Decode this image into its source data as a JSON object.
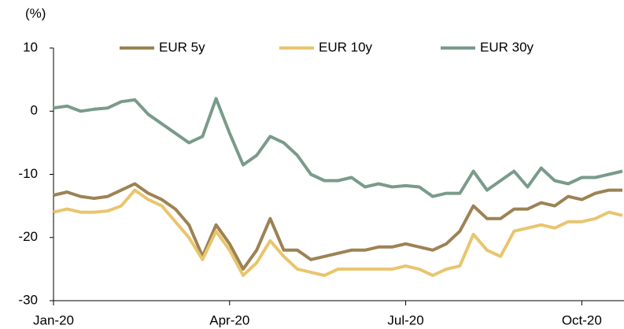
{
  "chart_data": {
    "type": "line",
    "y_label": "(%)",
    "categories": [
      "Jan-20",
      null,
      null,
      null,
      null,
      null,
      null,
      null,
      null,
      null,
      null,
      null,
      null,
      "Apr-20",
      null,
      null,
      null,
      null,
      null,
      null,
      null,
      null,
      null,
      null,
      null,
      null,
      "Jul-20",
      null,
      null,
      null,
      null,
      null,
      null,
      null,
      null,
      null,
      null,
      null,
      null,
      "Oct-20",
      null,
      null,
      null
    ],
    "series": [
      {
        "name": "EUR 5y",
        "color": "#9c8254",
        "values": [
          -13.3,
          -12.8,
          -13.5,
          -13.8,
          -13.5,
          -12.5,
          -11.5,
          -13,
          -14,
          -15.5,
          -18,
          -23,
          -18,
          -21,
          -25,
          -22,
          -17,
          -22,
          -22,
          -23.5,
          -23,
          -22.5,
          -22,
          -22,
          -21.5,
          -21.5,
          -21,
          -21.5,
          -22,
          -21,
          -19,
          -15,
          -17,
          -17,
          -15.5,
          -15.5,
          -14.5,
          -15,
          -13.5,
          -14,
          -13,
          -12.5,
          -12.5
        ]
      },
      {
        "name": "EUR 10y",
        "color": "#e8c56e",
        "values": [
          -16,
          -15.5,
          -16,
          -16,
          -15.8,
          -15,
          -12.5,
          -14,
          -15,
          -17.5,
          -20,
          -23.5,
          -19,
          -22,
          -26,
          -24,
          -20.5,
          -23,
          -25,
          -25.5,
          -26,
          -25,
          -25,
          -25,
          -25,
          -25,
          -24.5,
          -25,
          -26,
          -25,
          -24.5,
          -19.5,
          -22,
          -23,
          -19,
          -18.5,
          -18,
          -18.5,
          -17.5,
          -17.5,
          -17,
          -16,
          -16.5
        ]
      },
      {
        "name": "EUR 30y",
        "color": "#7a9b8a",
        "values": [
          0.5,
          0.8,
          0,
          0.3,
          0.5,
          1.5,
          1.8,
          -0.5,
          -2,
          -3.5,
          -5,
          -4,
          2,
          -3.5,
          -8.5,
          -7,
          -4,
          -5,
          -7,
          -10,
          -11,
          -11,
          -10.5,
          -12,
          -11.5,
          -12,
          -11.8,
          -12,
          -13.5,
          -13,
          -13,
          -9.5,
          -12.5,
          -11,
          -9.5,
          -12,
          -9,
          -11,
          -11.5,
          -10.5,
          -10.5,
          -10,
          -9.5
        ]
      }
    ],
    "ylim": [
      -30,
      10
    ],
    "yticks": [
      -30,
      -20,
      -10,
      0,
      10
    ],
    "grid": false,
    "legend": "top"
  }
}
